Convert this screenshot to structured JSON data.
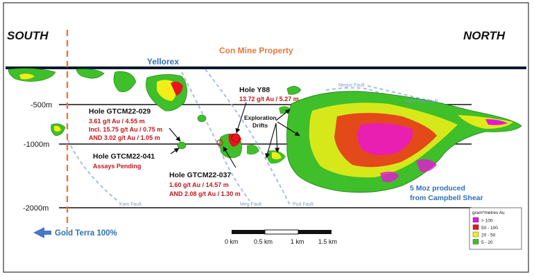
{
  "labels": {
    "south": "SOUTH",
    "north": "NORTH",
    "property": "Con Mine Property",
    "yellorex": "Yellorex",
    "gold_terra": "Gold Terra 100%",
    "produced_line1": "5 Moz produced",
    "produced_line2": "from Campbell Shear",
    "exploration_line1": "Exploration",
    "exploration_line2": "Drifts"
  },
  "depths": [
    "-500m",
    "-1000m",
    "-2000m"
  ],
  "faults": {
    "kam": "Kam Fault",
    "meg": "Meg Fault",
    "pud": "Pud Fault",
    "negus": "Negus Fault",
    "west_bay": "West Bay Fault"
  },
  "holes": {
    "gtcm22_029": {
      "title": "Hole GTCM22-029",
      "lines": [
        "3.61 g/t Au / 4.55 m",
        "Incl. 15.75 g/t Au / 0.75 m",
        "AND 3.02 g/t Au / 1.05 m"
      ]
    },
    "y88": {
      "title": "Hole Y88",
      "lines": [
        "13.72 g/t Au / 5.27 m"
      ]
    },
    "gtcm22_041": {
      "title": "Hole GTCM22-041",
      "lines": [
        "Assays Pending"
      ]
    },
    "gtcm22_037": {
      "title": "Hole GTCM22-037",
      "lines": [
        "1.60 g/t Au / 14.57 m",
        "AND 2.08 g/t Au / 1.30 m"
      ]
    }
  },
  "scale_bar": {
    "ticks": [
      "0 km",
      "0.5 km",
      "1 km",
      "1.5 km"
    ]
  },
  "legend": {
    "title": "gram*metres Au",
    "items": [
      {
        "label": "> 100",
        "color": "#e815d6"
      },
      {
        "label": "50 - 100",
        "color": "#e8141b"
      },
      {
        "label": "20 - 50",
        "color": "#f2ee18"
      },
      {
        "label": "5 - 20",
        "color": "#3fbf2a"
      }
    ]
  },
  "colors": {
    "fault": "#a8bede",
    "property_line": "#e8783a",
    "hole_red": "#c0161c",
    "blue_text": "#2f6fb6",
    "arrow": "#4a76c2"
  }
}
